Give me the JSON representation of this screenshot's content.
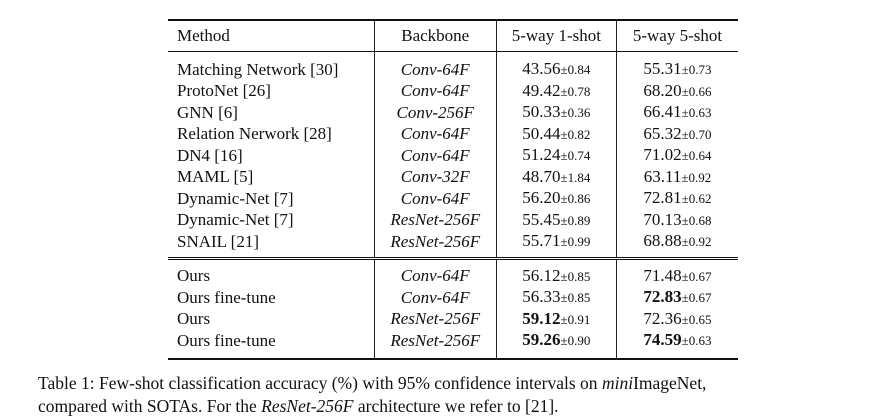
{
  "table": {
    "headers": [
      "Method",
      "Backbone",
      "5-way 1-shot",
      "5-way 5-shot"
    ],
    "group1": [
      {
        "method": "Matching Network [30]",
        "backbone": "Conv-64F",
        "one_mean": "43.56",
        "one_ci": "±0.84",
        "five_mean": "55.31",
        "five_ci": "±0.73",
        "one_bold": false,
        "five_bold": false
      },
      {
        "method": "ProtoNet [26]",
        "backbone": "Conv-64F",
        "one_mean": "49.42",
        "one_ci": "±0.78",
        "five_mean": "68.20",
        "five_ci": "±0.66",
        "one_bold": false,
        "five_bold": false
      },
      {
        "method": "GNN [6]",
        "backbone": "Conv-256F",
        "one_mean": "50.33",
        "one_ci": "±0.36",
        "five_mean": "66.41",
        "five_ci": "±0.63",
        "one_bold": false,
        "five_bold": false
      },
      {
        "method": "Relation Nerwork [28]",
        "backbone": "Conv-64F",
        "one_mean": "50.44",
        "one_ci": "±0.82",
        "five_mean": "65.32",
        "five_ci": "±0.70",
        "one_bold": false,
        "five_bold": false
      },
      {
        "method": "DN4 [16]",
        "backbone": "Conv-64F",
        "one_mean": "51.24",
        "one_ci": "±0.74",
        "five_mean": "71.02",
        "five_ci": "±0.64",
        "one_bold": false,
        "five_bold": false
      },
      {
        "method": "MAML [5]",
        "backbone": "Conv-32F",
        "one_mean": "48.70",
        "one_ci": "±1.84",
        "five_mean": "63.11",
        "five_ci": "±0.92",
        "one_bold": false,
        "five_bold": false
      },
      {
        "method": "Dynamic-Net [7]",
        "backbone": "Conv-64F",
        "one_mean": "56.20",
        "one_ci": "±0.86",
        "five_mean": "72.81",
        "five_ci": "±0.62",
        "one_bold": false,
        "five_bold": false
      },
      {
        "method": "Dynamic-Net [7]",
        "backbone": "ResNet-256F",
        "one_mean": "55.45",
        "one_ci": "±0.89",
        "five_mean": "70.13",
        "five_ci": "±0.68",
        "one_bold": false,
        "five_bold": false
      },
      {
        "method": "SNAIL [21]",
        "backbone": "ResNet-256F",
        "one_mean": "55.71",
        "one_ci": "±0.99",
        "five_mean": "68.88",
        "five_ci": "±0.92",
        "one_bold": false,
        "five_bold": false
      }
    ],
    "group2": [
      {
        "method": "Ours",
        "backbone": "Conv-64F",
        "one_mean": "56.12",
        "one_ci": "±0.85",
        "five_mean": "71.48",
        "five_ci": "±0.67",
        "one_bold": false,
        "five_bold": false
      },
      {
        "method": "Ours fine-tune",
        "backbone": "Conv-64F",
        "one_mean": "56.33",
        "one_ci": "±0.85",
        "five_mean": "72.83",
        "five_ci": "±0.67",
        "one_bold": false,
        "five_bold": true
      },
      {
        "method": "Ours",
        "backbone": "ResNet-256F",
        "one_mean": "59.12",
        "one_ci": "±0.91",
        "five_mean": "72.36",
        "five_ci": "±0.65",
        "one_bold": true,
        "five_bold": false
      },
      {
        "method": "Ours fine-tune",
        "backbone": "ResNet-256F",
        "one_mean": "59.26",
        "one_ci": "±0.90",
        "five_mean": "74.59",
        "five_ci": "±0.63",
        "one_bold": true,
        "five_bold": true
      }
    ]
  },
  "caption": {
    "part1": "Table 1: Few-shot classification accuracy (%) with 95% confidence intervals on ",
    "part2_italic": "mini",
    "part3": "ImageNet,",
    "part4": "compared with SOTAs. For the ",
    "part5_italic": "ResNet-256F",
    "part6": " architecture we refer to [21]."
  }
}
